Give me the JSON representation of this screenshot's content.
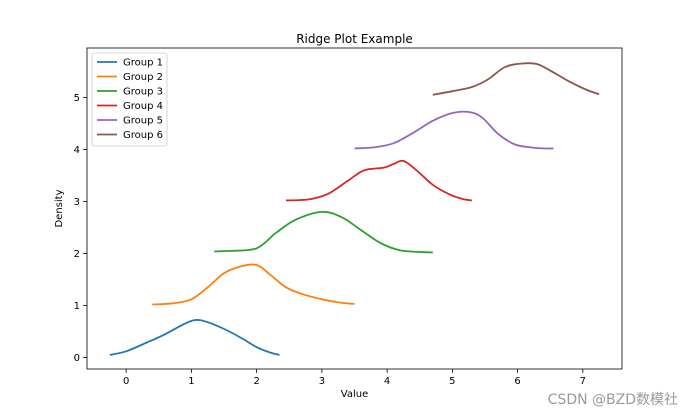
{
  "chart_data": {
    "type": "line",
    "title": "Ridge Plot Example",
    "xlabel": "Value",
    "ylabel": "Density",
    "xlim": [
      -0.6,
      7.6
    ],
    "ylim": [
      -0.22,
      5.95
    ],
    "xticks": [
      0,
      1,
      2,
      3,
      4,
      5,
      6,
      7
    ],
    "yticks": [
      0,
      1,
      2,
      3,
      4,
      5
    ],
    "legend_position": "upper-left",
    "series": [
      {
        "name": "Group 1",
        "color": "#1f77b4",
        "x": [
          -0.25,
          0.0,
          0.3,
          0.6,
          0.85,
          1.05,
          1.25,
          1.55,
          1.8,
          2.0,
          2.2,
          2.35
        ],
        "y": [
          0.05,
          0.12,
          0.28,
          0.45,
          0.62,
          0.72,
          0.68,
          0.52,
          0.35,
          0.2,
          0.1,
          0.05
        ]
      },
      {
        "name": "Group 2",
        "color": "#ff7f0e",
        "x": [
          0.4,
          0.7,
          1.0,
          1.25,
          1.5,
          1.75,
          2.0,
          2.2,
          2.45,
          2.7,
          3.0,
          3.25,
          3.5
        ],
        "y": [
          1.02,
          1.04,
          1.12,
          1.35,
          1.62,
          1.75,
          1.78,
          1.6,
          1.35,
          1.22,
          1.12,
          1.06,
          1.03
        ]
      },
      {
        "name": "Group 3",
        "color": "#2ca02c",
        "x": [
          1.35,
          1.6,
          2.0,
          2.3,
          2.6,
          3.0,
          3.3,
          3.6,
          3.9,
          4.2,
          4.5,
          4.7
        ],
        "y": [
          2.04,
          2.05,
          2.1,
          2.4,
          2.65,
          2.8,
          2.7,
          2.45,
          2.2,
          2.06,
          2.03,
          2.02
        ]
      },
      {
        "name": "Group 4",
        "color": "#d62728",
        "x": [
          2.45,
          2.8,
          3.1,
          3.4,
          3.65,
          3.95,
          4.1,
          4.25,
          4.45,
          4.7,
          4.95,
          5.15,
          5.3
        ],
        "y": [
          3.02,
          3.04,
          3.15,
          3.4,
          3.6,
          3.65,
          3.72,
          3.78,
          3.6,
          3.32,
          3.14,
          3.05,
          3.02
        ]
      },
      {
        "name": "Group 5",
        "color": "#9467bd",
        "x": [
          3.5,
          3.8,
          4.1,
          4.4,
          4.7,
          5.0,
          5.25,
          5.45,
          5.7,
          5.95,
          6.2,
          6.4,
          6.55
        ],
        "y": [
          4.02,
          4.04,
          4.12,
          4.32,
          4.55,
          4.7,
          4.72,
          4.62,
          4.3,
          4.1,
          4.04,
          4.02,
          4.02
        ]
      },
      {
        "name": "Group 6",
        "color": "#8c564b",
        "x": [
          4.7,
          5.0,
          5.3,
          5.55,
          5.8,
          6.05,
          6.3,
          6.55,
          6.8,
          7.05,
          7.25
        ],
        "y": [
          5.05,
          5.12,
          5.2,
          5.35,
          5.58,
          5.65,
          5.64,
          5.48,
          5.3,
          5.15,
          5.06
        ]
      }
    ]
  },
  "watermark": "CSDN @BZD数模社"
}
